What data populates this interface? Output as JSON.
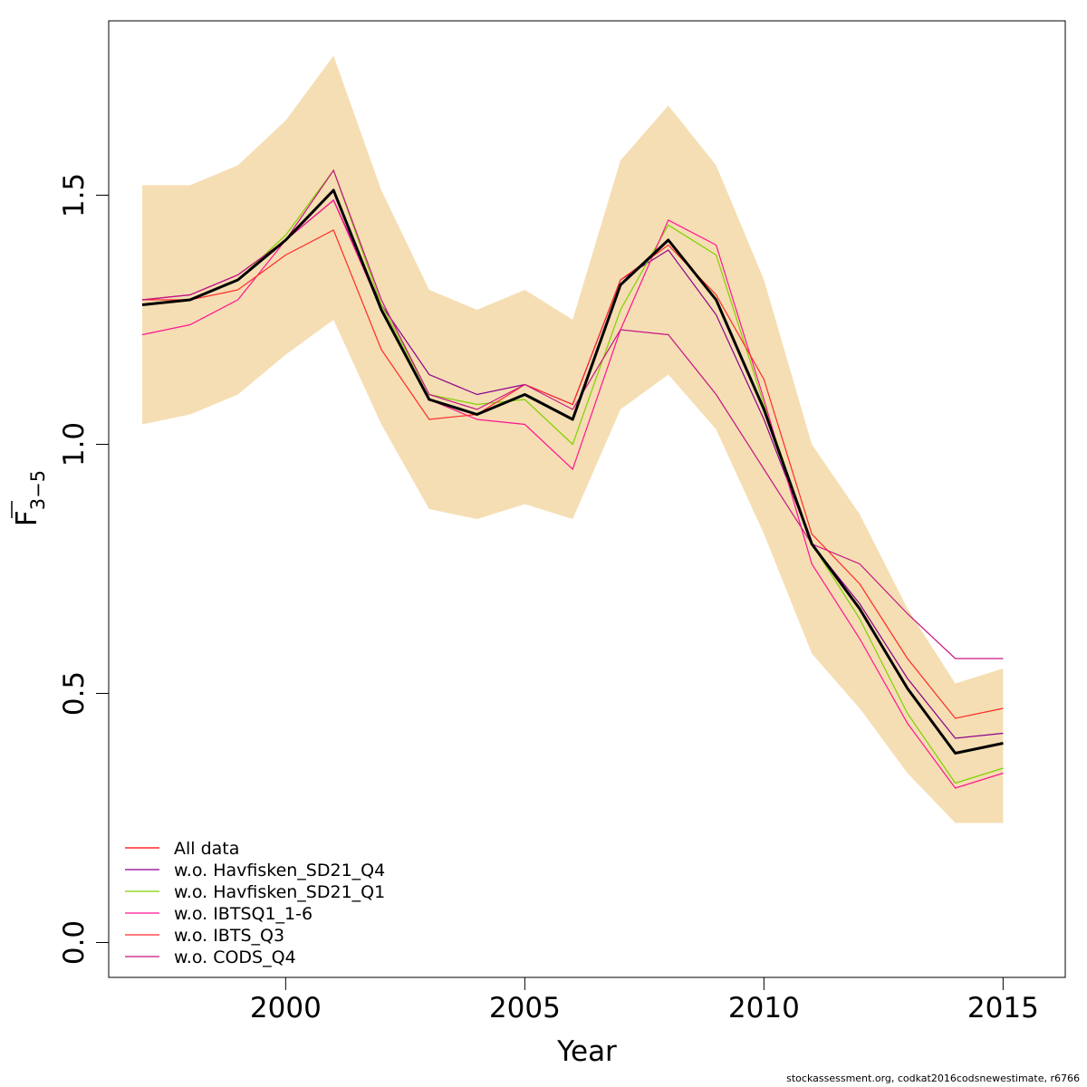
{
  "chart_data": {
    "type": "line",
    "xlabel": "Year",
    "ylabel_main": "F",
    "ylabel_sub": "3−5",
    "xlim": [
      1996.3,
      2016.3
    ],
    "ylim": [
      -0.07,
      1.85
    ],
    "x_ticks": [
      2000,
      2005,
      2010,
      2015
    ],
    "x_tick_labels": [
      "2000",
      "2005",
      "2010",
      "2015"
    ],
    "y_ticks": [
      0.0,
      0.5,
      1.0,
      1.5
    ],
    "y_tick_labels": [
      "0.0",
      "0.5",
      "1.0",
      "1.5"
    ],
    "grid": false,
    "legend_position": "bottom-left",
    "band": {
      "color": "#F5DEB3",
      "x": [
        1997,
        1998,
        1999,
        2000,
        2001,
        2002,
        2003,
        2004,
        2005,
        2006,
        2007,
        2008,
        2009,
        2010,
        2011,
        2012,
        2013,
        2014,
        2015
      ],
      "upper": [
        1.52,
        1.52,
        1.56,
        1.65,
        1.78,
        1.51,
        1.31,
        1.27,
        1.31,
        1.25,
        1.57,
        1.68,
        1.56,
        1.33,
        1.0,
        0.86,
        0.67,
        0.52,
        0.55
      ],
      "lower": [
        1.04,
        1.06,
        1.1,
        1.18,
        1.25,
        1.04,
        0.87,
        0.85,
        0.88,
        0.85,
        1.07,
        1.14,
        1.03,
        0.82,
        0.58,
        0.47,
        0.34,
        0.24,
        0.24
      ]
    },
    "main_line": {
      "color": "#000000",
      "x": [
        1997,
        1998,
        1999,
        2000,
        2001,
        2002,
        2003,
        2004,
        2005,
        2006,
        2007,
        2008,
        2009,
        2010,
        2011,
        2012,
        2013,
        2014,
        2015
      ],
      "values": [
        1.28,
        1.29,
        1.33,
        1.41,
        1.51,
        1.27,
        1.09,
        1.06,
        1.1,
        1.05,
        1.32,
        1.41,
        1.29,
        1.07,
        0.8,
        0.67,
        0.51,
        0.38,
        0.4
      ]
    },
    "series": [
      {
        "name": "All data",
        "color": "#FF0000",
        "x": [
          1997,
          1998,
          1999,
          2000,
          2001,
          2002,
          2003,
          2004,
          2005,
          2006,
          2007,
          2008,
          2009,
          2010,
          2011,
          2012,
          2013,
          2014,
          2015
        ],
        "values": [
          1.28,
          1.29,
          1.33,
          1.41,
          1.51,
          1.27,
          1.09,
          1.06,
          1.1,
          1.05,
          1.32,
          1.41,
          1.29,
          1.07,
          0.8,
          0.67,
          0.51,
          0.38,
          0.4
        ]
      },
      {
        "name": "w.o. Havfisken_SD21_Q4",
        "color": "#8B008B",
        "x": [
          1997,
          1998,
          1999,
          2000,
          2001,
          2002,
          2003,
          2004,
          2005,
          2006,
          2007,
          2008,
          2009,
          2010,
          2011,
          2012,
          2013,
          2014,
          2015
        ],
        "values": [
          1.29,
          1.3,
          1.34,
          1.41,
          1.49,
          1.28,
          1.14,
          1.1,
          1.12,
          1.08,
          1.33,
          1.39,
          1.26,
          1.05,
          0.8,
          0.68,
          0.53,
          0.41,
          0.42
        ]
      },
      {
        "name": "w.o. Havfisken_SD21_Q1",
        "color": "#7FD100",
        "x": [
          1997,
          1998,
          1999,
          2000,
          2001,
          2002,
          2003,
          2004,
          2005,
          2006,
          2007,
          2008,
          2009,
          2010,
          2011,
          2012,
          2013,
          2014,
          2015
        ],
        "values": [
          1.28,
          1.29,
          1.33,
          1.42,
          1.55,
          1.28,
          1.1,
          1.08,
          1.09,
          1.0,
          1.27,
          1.44,
          1.38,
          1.08,
          0.8,
          0.65,
          0.46,
          0.32,
          0.35
        ]
      },
      {
        "name": "w.o. IBTSQ1_1-6",
        "color": "#FF1493",
        "x": [
          1997,
          1998,
          1999,
          2000,
          2001,
          2002,
          2003,
          2004,
          2005,
          2006,
          2007,
          2008,
          2009,
          2010,
          2011,
          2012,
          2013,
          2014,
          2015
        ],
        "values": [
          1.22,
          1.24,
          1.29,
          1.41,
          1.49,
          1.27,
          1.09,
          1.05,
          1.04,
          0.95,
          1.23,
          1.45,
          1.4,
          1.09,
          0.76,
          0.61,
          0.44,
          0.31,
          0.34
        ]
      },
      {
        "name": "w.o. IBTS_Q3",
        "color": "#FF2A2A",
        "x": [
          1997,
          1998,
          1999,
          2000,
          2001,
          2002,
          2003,
          2004,
          2005,
          2006,
          2007,
          2008,
          2009,
          2010,
          2011,
          2012,
          2013,
          2014,
          2015
        ],
        "values": [
          1.29,
          1.29,
          1.31,
          1.38,
          1.43,
          1.19,
          1.05,
          1.06,
          1.12,
          1.08,
          1.33,
          1.4,
          1.3,
          1.13,
          0.82,
          0.72,
          0.57,
          0.45,
          0.47
        ]
      },
      {
        "name": "w.o. CODS_Q4",
        "color": "#C71585",
        "x": [
          1997,
          1998,
          1999,
          2000,
          2001,
          2002,
          2003,
          2004,
          2005,
          2006,
          2007,
          2008,
          2009,
          2010,
          2011,
          2012,
          2013,
          2014,
          2015
        ],
        "values": [
          1.29,
          1.3,
          1.34,
          1.41,
          1.55,
          1.29,
          1.1,
          1.07,
          1.12,
          1.07,
          1.23,
          1.22,
          1.1,
          0.95,
          0.8,
          0.76,
          0.66,
          0.57,
          0.57
        ]
      }
    ]
  },
  "footer": {
    "text": "stockassessment.org, codkat2016codsnewestimate, r6766"
  }
}
